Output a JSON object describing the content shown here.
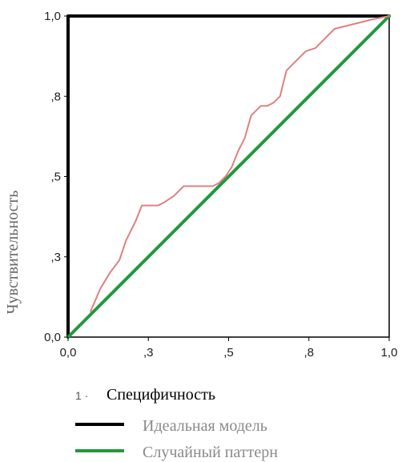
{
  "chart_data": {
    "type": "line",
    "xlabel": "",
    "ylabel": "Чувствительность",
    "xlim": [
      0,
      1
    ],
    "ylim": [
      0,
      1
    ],
    "x_ticks": [
      "0,0",
      ",3",
      ",5",
      ",8",
      "1,0"
    ],
    "x_tick_values": [
      0.0,
      0.25,
      0.5,
      0.75,
      1.0
    ],
    "y_ticks": [
      "0,0",
      ",3",
      ",5",
      ",8",
      "1,0"
    ],
    "y_tick_values": [
      0.0,
      0.25,
      0.5,
      0.75,
      1.0
    ],
    "grid": false,
    "legend": {
      "position": "bottom",
      "marker": "1",
      "title": "Специфичность",
      "entries": [
        {
          "label": "Идеальная модель",
          "color": "#000000"
        },
        {
          "label": "Случайный паттерн",
          "color": "#1f9a3a"
        }
      ]
    },
    "series": [
      {
        "name": "Идеальная модель",
        "color": "#000000",
        "x": [
          0.0,
          0.0,
          1.0
        ],
        "y": [
          0.0,
          1.0,
          1.0
        ]
      },
      {
        "name": "Случайный паттерн",
        "color": "#1f9a3a",
        "x": [
          0.0,
          1.0
        ],
        "y": [
          0.0,
          1.0
        ]
      },
      {
        "color": "#e08080",
        "x": [
          0.07,
          0.1,
          0.13,
          0.16,
          0.18,
          0.21,
          0.23,
          0.26,
          0.28,
          0.3,
          0.33,
          0.36,
          0.39,
          0.42,
          0.45,
          0.47,
          0.49,
          0.51,
          0.53,
          0.55,
          0.57,
          0.6,
          0.62,
          0.64,
          0.66,
          0.68,
          0.71,
          0.74,
          0.77,
          0.8,
          0.83,
          0.87,
          0.91,
          0.95,
          1.0
        ],
        "y": [
          0.08,
          0.15,
          0.2,
          0.24,
          0.3,
          0.36,
          0.41,
          0.41,
          0.41,
          0.42,
          0.44,
          0.47,
          0.47,
          0.47,
          0.47,
          0.48,
          0.5,
          0.53,
          0.58,
          0.62,
          0.69,
          0.72,
          0.72,
          0.73,
          0.75,
          0.83,
          0.86,
          0.89,
          0.9,
          0.93,
          0.96,
          0.97,
          0.98,
          0.99,
          1.0
        ]
      }
    ]
  }
}
